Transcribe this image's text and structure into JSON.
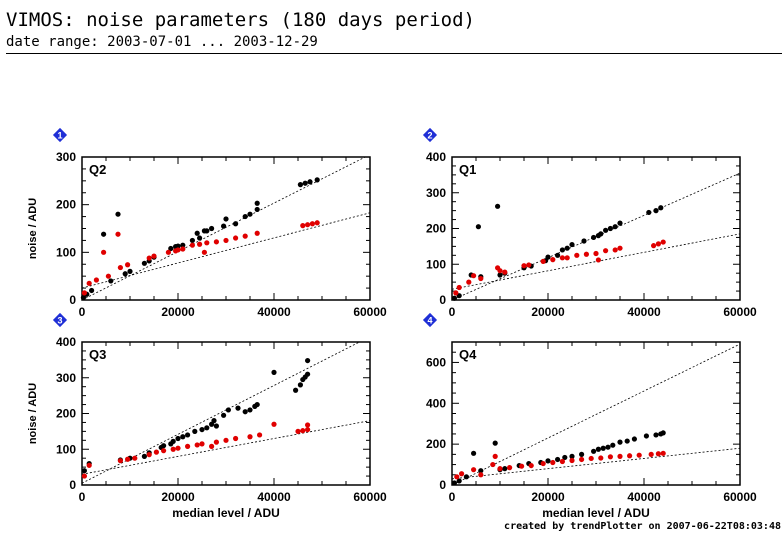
{
  "header": {
    "title": "VIMOS: noise parameters (180 days period)",
    "subtitle": "date range: 2003-07-01 ... 2003-12-29"
  },
  "footer": {
    "credit": "created by trendPlotter on 2007-06-22T08:03:48"
  },
  "colors": {
    "black_series": "#000000",
    "red_series": "#e00000",
    "marker": "#1f2fd6"
  },
  "chart_data": [
    {
      "type": "scatter",
      "panel_number": "1",
      "label": "Q2",
      "xlim": [
        0,
        60000
      ],
      "ylim": [
        0,
        300
      ],
      "xticks": [
        0,
        20000,
        40000,
        60000
      ],
      "yticks": [
        0,
        100,
        200,
        300
      ],
      "ylabel": "noise / ADU",
      "xlabel": "",
      "show_xticklabels": true,
      "fits": [
        [
          0,
          0,
          60000,
          305
        ],
        [
          0,
          25,
          60000,
          183
        ]
      ],
      "series": [
        {
          "color": "black",
          "points": [
            [
              300,
              5
            ],
            [
              1000,
              12
            ],
            [
              2000,
              20
            ],
            [
              4500,
              138
            ],
            [
              6000,
              40
            ],
            [
              7500,
              180
            ],
            [
              9000,
              55
            ],
            [
              10000,
              60
            ],
            [
              13000,
              77
            ],
            [
              14000,
              82
            ],
            [
              15000,
              90
            ],
            [
              18500,
              108
            ],
            [
              19500,
              112
            ],
            [
              20000,
              113
            ],
            [
              21000,
              115
            ],
            [
              23000,
              125
            ],
            [
              24000,
              140
            ],
            [
              24500,
              130
            ],
            [
              25500,
              145
            ],
            [
              26000,
              145
            ],
            [
              27000,
              150
            ],
            [
              29500,
              155
            ],
            [
              30000,
              170
            ],
            [
              32000,
              160
            ],
            [
              34000,
              175
            ],
            [
              35000,
              180
            ],
            [
              36500,
              190
            ],
            [
              36500,
              203
            ],
            [
              45500,
              242
            ],
            [
              46500,
              245
            ],
            [
              47500,
              248
            ],
            [
              49000,
              252
            ]
          ]
        },
        {
          "color": "red",
          "points": [
            [
              500,
              15
            ],
            [
              1500,
              35
            ],
            [
              3000,
              42
            ],
            [
              4500,
              100
            ],
            [
              5500,
              50
            ],
            [
              7500,
              138
            ],
            [
              8000,
              68
            ],
            [
              9500,
              74
            ],
            [
              14000,
              88
            ],
            [
              15000,
              92
            ],
            [
              18000,
              100
            ],
            [
              19500,
              103
            ],
            [
              20000,
              105
            ],
            [
              21000,
              107
            ],
            [
              23000,
              115
            ],
            [
              24500,
              117
            ],
            [
              25500,
              100
            ],
            [
              26000,
              120
            ],
            [
              28000,
              122
            ],
            [
              30000,
              125
            ],
            [
              32000,
              130
            ],
            [
              34000,
              134
            ],
            [
              36500,
              140
            ],
            [
              46000,
              156
            ],
            [
              47000,
              158
            ],
            [
              48000,
              160
            ],
            [
              49000,
              162
            ]
          ]
        }
      ]
    },
    {
      "type": "scatter",
      "panel_number": "2",
      "label": "Q1",
      "xlim": [
        0,
        60000
      ],
      "ylim": [
        0,
        400
      ],
      "xticks": [
        0,
        20000,
        40000,
        60000
      ],
      "yticks": [
        0,
        100,
        200,
        300,
        400
      ],
      "ylabel": "",
      "xlabel": "",
      "show_xticklabels": true,
      "fits": [
        [
          0,
          0,
          60000,
          355
        ],
        [
          0,
          30,
          60000,
          185
        ]
      ],
      "series": [
        {
          "color": "black",
          "points": [
            [
              500,
              5
            ],
            [
              1500,
              12
            ],
            [
              4000,
              70
            ],
            [
              5500,
              205
            ],
            [
              6000,
              65
            ],
            [
              9500,
              262
            ],
            [
              10000,
              70
            ],
            [
              11000,
              75
            ],
            [
              15000,
              90
            ],
            [
              16500,
              95
            ],
            [
              19500,
              110
            ],
            [
              20000,
              120
            ],
            [
              22000,
              125
            ],
            [
              23000,
              140
            ],
            [
              24000,
              145
            ],
            [
              25000,
              155
            ],
            [
              27500,
              165
            ],
            [
              29500,
              175
            ],
            [
              30500,
              180
            ],
            [
              31000,
              185
            ],
            [
              32000,
              195
            ],
            [
              33000,
              200
            ],
            [
              34000,
              205
            ],
            [
              35000,
              215
            ],
            [
              41000,
              245
            ],
            [
              42500,
              250
            ],
            [
              43500,
              258
            ]
          ]
        },
        {
          "color": "red",
          "points": [
            [
              800,
              20
            ],
            [
              1500,
              35
            ],
            [
              3500,
              50
            ],
            [
              4500,
              68
            ],
            [
              6000,
              60
            ],
            [
              9500,
              90
            ],
            [
              10000,
              82
            ],
            [
              11000,
              78
            ],
            [
              15000,
              96
            ],
            [
              16000,
              98
            ],
            [
              19000,
              108
            ],
            [
              21000,
              113
            ],
            [
              23000,
              118
            ],
            [
              24000,
              118
            ],
            [
              26000,
              125
            ],
            [
              28000,
              128
            ],
            [
              30000,
              130
            ],
            [
              30500,
              112
            ],
            [
              32000,
              138
            ],
            [
              34000,
              140
            ],
            [
              35000,
              145
            ],
            [
              42000,
              152
            ],
            [
              43000,
              157
            ],
            [
              44000,
              162
            ]
          ]
        }
      ]
    },
    {
      "type": "scatter",
      "panel_number": "3",
      "label": "Q3",
      "xlim": [
        0,
        60000
      ],
      "ylim": [
        0,
        400
      ],
      "xticks": [
        0,
        20000,
        40000,
        60000
      ],
      "yticks": [
        0,
        100,
        200,
        300,
        400
      ],
      "ylabel": "noise / ADU",
      "xlabel": "median level / ADU",
      "show_xticklabels": true,
      "fits": [
        [
          0,
          5,
          60000,
          415
        ],
        [
          0,
          30,
          60000,
          180
        ]
      ],
      "series": [
        {
          "color": "black",
          "points": [
            [
              500,
              40
            ],
            [
              1500,
              60
            ],
            [
              8000,
              70
            ],
            [
              10000,
              75
            ],
            [
              13000,
              80
            ],
            [
              14000,
              90
            ],
            [
              16500,
              105
            ],
            [
              17000,
              110
            ],
            [
              18500,
              115
            ],
            [
              19000,
              122
            ],
            [
              20000,
              130
            ],
            [
              21000,
              135
            ],
            [
              22000,
              140
            ],
            [
              23500,
              150
            ],
            [
              25000,
              155
            ],
            [
              26000,
              160
            ],
            [
              27000,
              170
            ],
            [
              27500,
              180
            ],
            [
              28000,
              165
            ],
            [
              29500,
              195
            ],
            [
              30500,
              210
            ],
            [
              32500,
              215
            ],
            [
              34000,
              205
            ],
            [
              35000,
              210
            ],
            [
              36000,
              220
            ],
            [
              36500,
              225
            ],
            [
              40000,
              315
            ],
            [
              44500,
              265
            ],
            [
              45500,
              280
            ],
            [
              46000,
              295
            ],
            [
              46500,
              302
            ],
            [
              47000,
              310
            ],
            [
              47000,
              348
            ]
          ]
        },
        {
          "color": "red",
          "points": [
            [
              500,
              25
            ],
            [
              1500,
              55
            ],
            [
              8000,
              68
            ],
            [
              9500,
              72
            ],
            [
              11000,
              75
            ],
            [
              14000,
              85
            ],
            [
              15500,
              92
            ],
            [
              17000,
              96
            ],
            [
              19000,
              100
            ],
            [
              20000,
              103
            ],
            [
              22000,
              108
            ],
            [
              24000,
              112
            ],
            [
              25000,
              115
            ],
            [
              27000,
              108
            ],
            [
              28000,
              120
            ],
            [
              30000,
              125
            ],
            [
              32000,
              130
            ],
            [
              35000,
              135
            ],
            [
              37000,
              140
            ],
            [
              40000,
              170
            ],
            [
              45000,
              150
            ],
            [
              46000,
              152
            ],
            [
              47000,
              155
            ],
            [
              47000,
              168
            ]
          ]
        }
      ]
    },
    {
      "type": "scatter",
      "panel_number": "4",
      "label": "Q4",
      "xlim": [
        0,
        60000
      ],
      "ylim": [
        0,
        700
      ],
      "xticks": [
        0,
        20000,
        40000,
        60000
      ],
      "yticks": [
        0,
        200,
        400,
        600
      ],
      "ylabel": "",
      "xlabel": "median level / ADU",
      "show_xticklabels": true,
      "fits": [
        [
          0,
          0,
          60000,
          690
        ],
        [
          0,
          30,
          60000,
          180
        ]
      ],
      "series": [
        {
          "color": "black",
          "points": [
            [
              500,
              10
            ],
            [
              1500,
              20
            ],
            [
              3000,
              40
            ],
            [
              4500,
              155
            ],
            [
              6000,
              70
            ],
            [
              9000,
              205
            ],
            [
              10000,
              75
            ],
            [
              11000,
              80
            ],
            [
              14000,
              95
            ],
            [
              16000,
              105
            ],
            [
              18500,
              110
            ],
            [
              20000,
              118
            ],
            [
              22000,
              125
            ],
            [
              23500,
              135
            ],
            [
              25000,
              140
            ],
            [
              27000,
              150
            ],
            [
              29500,
              165
            ],
            [
              30500,
              175
            ],
            [
              31500,
              180
            ],
            [
              32500,
              185
            ],
            [
              33500,
              195
            ],
            [
              35000,
              210
            ],
            [
              36500,
              215
            ],
            [
              38000,
              225
            ],
            [
              40500,
              240
            ],
            [
              42500,
              245
            ],
            [
              43500,
              250
            ],
            [
              44000,
              255
            ]
          ]
        },
        {
          "color": "red",
          "points": [
            [
              1000,
              40
            ],
            [
              2000,
              55
            ],
            [
              4500,
              75
            ],
            [
              6000,
              50
            ],
            [
              8500,
              100
            ],
            [
              9000,
              140
            ],
            [
              10000,
              80
            ],
            [
              12000,
              85
            ],
            [
              14500,
              92
            ],
            [
              16500,
              95
            ],
            [
              19000,
              105
            ],
            [
              21000,
              110
            ],
            [
              23000,
              115
            ],
            [
              25000,
              120
            ],
            [
              27000,
              125
            ],
            [
              29000,
              130
            ],
            [
              31000,
              132
            ],
            [
              33000,
              138
            ],
            [
              35000,
              140
            ],
            [
              37000,
              143
            ],
            [
              39000,
              146
            ],
            [
              41500,
              150
            ],
            [
              43000,
              153
            ],
            [
              44000,
              155
            ]
          ]
        }
      ]
    }
  ]
}
